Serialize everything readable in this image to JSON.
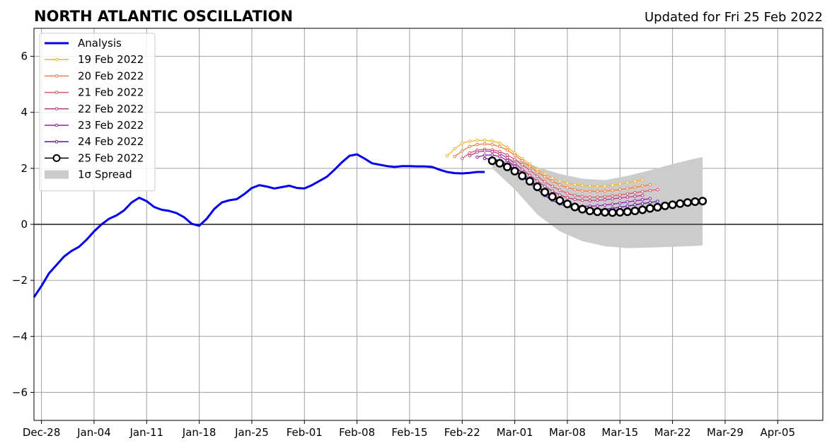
{
  "chart_data": {
    "type": "line",
    "title": "NORTH ATLANTIC OSCILLATION",
    "subtitle": "Updated for Fri 25 Feb 2022",
    "xlabel": "",
    "ylabel": "",
    "x_range": [
      "2021-12-27",
      "2022-04-11"
    ],
    "ylim": [
      -7,
      7
    ],
    "grid": true,
    "legend_position": "top-left",
    "x_ticks": [
      "Dec-28",
      "Jan-04",
      "Jan-11",
      "Jan-18",
      "Jan-25",
      "Feb-01",
      "Feb-08",
      "Feb-15",
      "Feb-22",
      "Mar-01",
      "Mar-08",
      "Mar-15",
      "Mar-22",
      "Mar-29",
      "Apr-05"
    ],
    "x_tick_dates": [
      "2021-12-28",
      "2022-01-04",
      "2022-01-11",
      "2022-01-18",
      "2022-01-25",
      "2022-02-01",
      "2022-02-08",
      "2022-02-15",
      "2022-02-22",
      "2022-03-01",
      "2022-03-08",
      "2022-03-15",
      "2022-03-22",
      "2022-03-29",
      "2022-04-05"
    ],
    "y_ticks": [
      -6,
      -4,
      -2,
      0,
      2,
      4,
      6
    ],
    "y_tick_labels": [
      "−6",
      "−4",
      "−2",
      "0",
      "2",
      "4",
      "6"
    ],
    "analysis": {
      "name": "Analysis",
      "color": "#0000ee",
      "dates": [
        "2021-12-27",
        "2021-12-28",
        "2021-12-29",
        "2021-12-30",
        "2021-12-31",
        "2022-01-01",
        "2022-01-02",
        "2022-01-03",
        "2022-01-04",
        "2022-01-05",
        "2022-01-06",
        "2022-01-07",
        "2022-01-08",
        "2022-01-09",
        "2022-01-10",
        "2022-01-11",
        "2022-01-12",
        "2022-01-13",
        "2022-01-14",
        "2022-01-15",
        "2022-01-16",
        "2022-01-17",
        "2022-01-18",
        "2022-01-19",
        "2022-01-20",
        "2022-01-21",
        "2022-01-22",
        "2022-01-23",
        "2022-01-24",
        "2022-01-25",
        "2022-01-26",
        "2022-01-27",
        "2022-01-28",
        "2022-01-29",
        "2022-01-30",
        "2022-01-31",
        "2022-02-01",
        "2022-02-02",
        "2022-02-03",
        "2022-02-04",
        "2022-02-05",
        "2022-02-06",
        "2022-02-07",
        "2022-02-08",
        "2022-02-09",
        "2022-02-10",
        "2022-02-11",
        "2022-02-12",
        "2022-02-13",
        "2022-02-14",
        "2022-02-15",
        "2022-02-16",
        "2022-02-17",
        "2022-02-18",
        "2022-02-19",
        "2022-02-20",
        "2022-02-21",
        "2022-02-22",
        "2022-02-23",
        "2022-02-24",
        "2022-02-25"
      ],
      "values": [
        -2.6,
        -2.2,
        -1.75,
        -1.45,
        -1.15,
        -0.95,
        -0.8,
        -0.55,
        -0.25,
        0.0,
        0.2,
        0.32,
        0.5,
        0.78,
        0.95,
        0.83,
        0.62,
        0.52,
        0.48,
        0.4,
        0.25,
        0.02,
        -0.05,
        0.2,
        0.55,
        0.78,
        0.86,
        0.9,
        1.08,
        1.3,
        1.4,
        1.35,
        1.28,
        1.33,
        1.38,
        1.3,
        1.28,
        1.4,
        1.55,
        1.7,
        1.95,
        2.22,
        2.45,
        2.5,
        2.35,
        2.18,
        2.13,
        2.08,
        2.05,
        2.08,
        2.08,
        2.07,
        2.07,
        2.05,
        1.95,
        1.87,
        1.83,
        1.82,
        1.84,
        1.87,
        1.87
      ]
    },
    "forecasts": [
      {
        "name": "19 Feb 2022",
        "color": "#f9b233",
        "start": "2022-02-20",
        "values": [
          2.45,
          2.7,
          2.9,
          2.97,
          3.0,
          3.0,
          2.98,
          2.9,
          2.75,
          2.55,
          2.35,
          2.15,
          1.95,
          1.8,
          1.65,
          1.55,
          1.48,
          1.42,
          1.39,
          1.37,
          1.36,
          1.37,
          1.4,
          1.44,
          1.49,
          1.54,
          1.59
        ]
      },
      {
        "name": "20 Feb 2022",
        "color": "#f27d47",
        "start": "2022-02-21",
        "values": [
          2.42,
          2.62,
          2.78,
          2.85,
          2.87,
          2.85,
          2.78,
          2.65,
          2.47,
          2.27,
          2.07,
          1.87,
          1.7,
          1.54,
          1.41,
          1.31,
          1.24,
          1.2,
          1.18,
          1.18,
          1.19,
          1.21,
          1.24,
          1.28,
          1.32,
          1.37,
          1.41
        ]
      },
      {
        "name": "21 Feb 2022",
        "color": "#e05567",
        "start": "2022-02-22",
        "values": [
          2.35,
          2.55,
          2.65,
          2.68,
          2.66,
          2.6,
          2.48,
          2.32,
          2.13,
          1.93,
          1.72,
          1.52,
          1.36,
          1.22,
          1.11,
          1.03,
          0.99,
          0.97,
          0.97,
          0.99,
          1.02,
          1.05,
          1.09,
          1.13,
          1.17,
          1.21,
          1.24
        ]
      },
      {
        "name": "22 Feb 2022",
        "color": "#b83a8b",
        "start": "2022-02-23",
        "values": [
          2.45,
          2.58,
          2.62,
          2.6,
          2.52,
          2.38,
          2.18,
          1.96,
          1.75,
          1.55,
          1.36,
          1.19,
          1.05,
          0.95,
          0.89,
          0.86,
          0.85,
          0.86,
          0.88,
          0.91,
          0.94,
          0.97,
          1.0,
          1.03
        ]
      },
      {
        "name": "23 Feb 2022",
        "color": "#9420a6",
        "start": "2022-02-24",
        "values": [
          2.4,
          2.47,
          2.48,
          2.42,
          2.28,
          2.07,
          1.84,
          1.6,
          1.38,
          1.17,
          0.99,
          0.84,
          0.74,
          0.68,
          0.65,
          0.65,
          0.66,
          0.69,
          0.72,
          0.76,
          0.8,
          0.84,
          0.88,
          0.92
        ]
      },
      {
        "name": "24 Feb 2022",
        "color": "#5a16a0",
        "start": "2022-02-25",
        "values": [
          2.35,
          2.33,
          2.28,
          2.15,
          1.95,
          1.71,
          1.47,
          1.24,
          1.03,
          0.86,
          0.73,
          0.63,
          0.57,
          0.53,
          0.52,
          0.52,
          0.54,
          0.57,
          0.61,
          0.65,
          0.7,
          0.74,
          0.78,
          0.82
        ]
      },
      {
        "name": "25 Feb 2022",
        "color": "#000000",
        "start": "2022-02-26",
        "values": [
          2.27,
          2.18,
          2.05,
          1.9,
          1.73,
          1.54,
          1.34,
          1.15,
          0.99,
          0.85,
          0.73,
          0.62,
          0.54,
          0.48,
          0.45,
          0.43,
          0.42,
          0.43,
          0.45,
          0.48,
          0.52,
          0.57,
          0.61,
          0.66,
          0.7,
          0.74,
          0.78,
          0.81,
          0.83
        ]
      }
    ],
    "spread": {
      "name": "1σ Spread",
      "color": "#cccccc",
      "dates": [
        "2022-02-26",
        "2022-03-01",
        "2022-03-04",
        "2022-03-07",
        "2022-03-10",
        "2022-03-13",
        "2022-03-16",
        "2022-03-19",
        "2022-03-22",
        "2022-03-25",
        "2022-03-26"
      ],
      "upper": [
        2.2,
        2.35,
        2.05,
        1.8,
        1.63,
        1.58,
        1.73,
        1.93,
        2.15,
        2.35,
        2.4
      ],
      "lower": [
        2.0,
        1.25,
        0.35,
        -0.25,
        -0.6,
        -0.78,
        -0.85,
        -0.83,
        -0.8,
        -0.77,
        -0.75
      ]
    }
  }
}
